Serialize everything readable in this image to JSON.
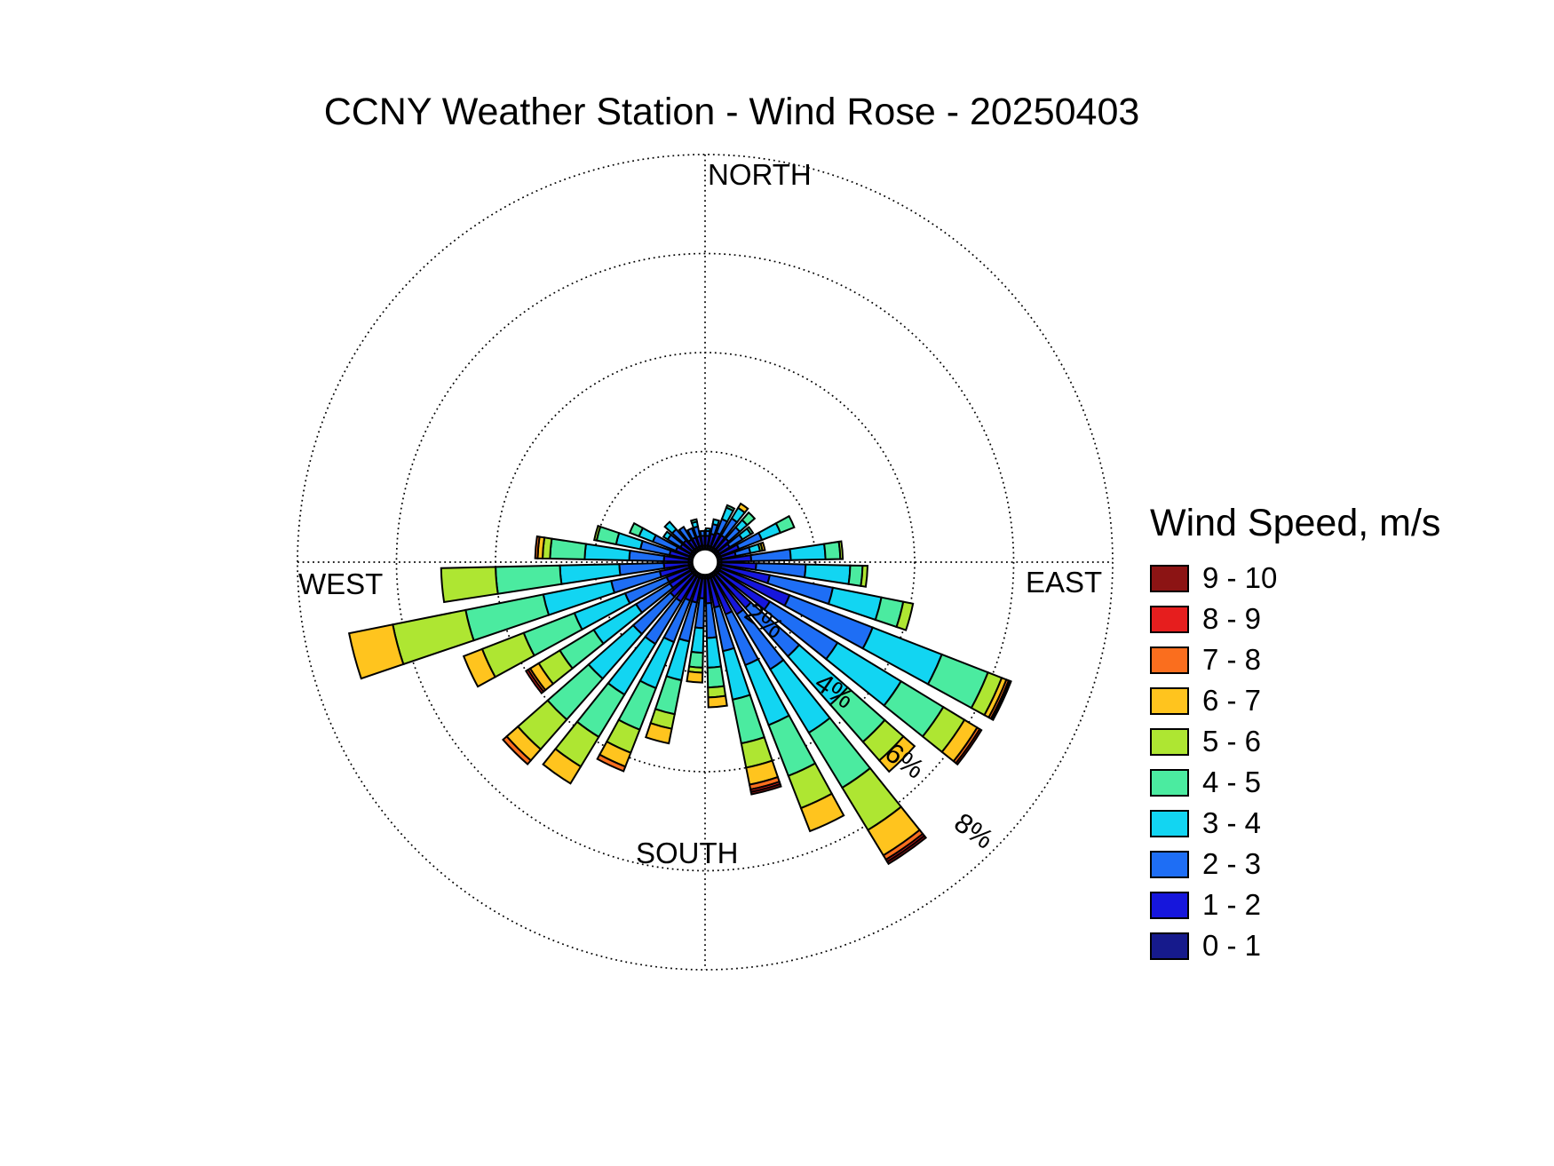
{
  "title": "CCNY Weather Station - Wind Rose - 20250403",
  "axis_labels": {
    "north": "NORTH",
    "east": "EAST",
    "south": "SOUTH",
    "west": "WEST"
  },
  "legend": {
    "title": "Wind Speed, m/s",
    "items": [
      {
        "label": "9 - 10",
        "color": "#8C1414"
      },
      {
        "label": "8 - 9",
        "color": "#E61E1E"
      },
      {
        "label": "7 - 8",
        "color": "#FA6E1E"
      },
      {
        "label": "6 - 7",
        "color": "#FFC41E"
      },
      {
        "label": "5 - 6",
        "color": "#AEE632"
      },
      {
        "label": "4 - 5",
        "color": "#4BEBA0"
      },
      {
        "label": "3 - 4",
        "color": "#12D5F2"
      },
      {
        "label": "2 - 3",
        "color": "#1E6EF5"
      },
      {
        "label": "1 - 2",
        "color": "#1616DC"
      },
      {
        "label": "0 - 1",
        "color": "#161A8C"
      }
    ]
  },
  "chart_data": {
    "type": "bar",
    "subtype": "wind-rose-stacked-polar",
    "title": "CCNY Weather Station - Wind Rose - 20250403",
    "units": "percent of time",
    "rings_pct": [
      2,
      4,
      6,
      8
    ],
    "ring_labels": [
      "2%",
      "4%",
      "6%",
      "8%"
    ],
    "ring_label_azimuth_deg": 135,
    "petal_width_deg": 7.4,
    "grid_style": "dotted",
    "legend_position": "right",
    "directions_deg": [
      5,
      15,
      25,
      35,
      45,
      55,
      65,
      75,
      85,
      95,
      105,
      115,
      125,
      135,
      145,
      155,
      165,
      175,
      185,
      195,
      205,
      215,
      225,
      235,
      245,
      255,
      265,
      275,
      285,
      295,
      305,
      315,
      325,
      335,
      345,
      355
    ],
    "series": [
      {
        "name": "0 - 1",
        "color": "#161A8C",
        "values": [
          0.1,
          0.1,
          0.1,
          0.1,
          0.1,
          0.1,
          0.1,
          0.1,
          0.1,
          0.1,
          0.1,
          0.1,
          0.1,
          0.1,
          0.1,
          0.1,
          0.1,
          0.1,
          0.1,
          0.1,
          0.1,
          0.1,
          0.1,
          0.1,
          0.1,
          0.1,
          0.1,
          0.1,
          0.1,
          0.1,
          0.1,
          0.1,
          0.1,
          0.1,
          0.1,
          0.1
        ]
      },
      {
        "name": "1 - 2",
        "color": "#1616DC",
        "values": [
          0.2,
          0.25,
          0.3,
          0.3,
          0.3,
          0.25,
          0.4,
          0.3,
          0.6,
          0.7,
          1.0,
          1.5,
          1.2,
          0.9,
          0.9,
          0.8,
          0.6,
          0.5,
          0.4,
          0.5,
          0.5,
          0.6,
          0.6,
          0.5,
          0.5,
          0.6,
          0.5,
          0.5,
          0.4,
          0.3,
          0.25,
          0.25,
          0.2,
          0.2,
          0.2,
          0.2
        ]
      },
      {
        "name": "2 - 3",
        "color": "#1E6EF5",
        "values": [
          0.1,
          0.2,
          0.3,
          0.4,
          0.3,
          0.3,
          0.5,
          0.3,
          0.8,
          1.0,
          1.3,
          1.8,
          1.6,
          1.3,
          1.3,
          1.1,
          0.9,
          0.7,
          0.6,
          0.8,
          0.9,
          1.0,
          1.0,
          0.8,
          0.9,
          1.0,
          0.9,
          0.7,
          0.6,
          0.5,
          0.3,
          0.3,
          0.3,
          0.2,
          0.2,
          0.1
        ]
      },
      {
        "name": "3 - 4",
        "color": "#12D5F2",
        "values": [
          0.05,
          0.1,
          0.25,
          0.25,
          0.2,
          0.2,
          0.4,
          0.2,
          0.7,
          0.9,
          1.0,
          1.5,
          1.5,
          1.3,
          1.5,
          1.3,
          1.0,
          0.6,
          0.5,
          0.8,
          1.0,
          1.2,
          1.2,
          1.0,
          1.1,
          1.4,
          1.2,
          0.9,
          0.5,
          0.3,
          0.1,
          0.2,
          0,
          0,
          0.1,
          0
        ]
      },
      {
        "name": "4 - 5",
        "color": "#4BEBA0",
        "values": [
          0,
          0,
          0.05,
          0,
          0.2,
          0.05,
          0.3,
          0,
          0.3,
          0.25,
          0.45,
          1.0,
          1.0,
          1.0,
          1.3,
          1.1,
          0.9,
          0.4,
          0.3,
          0.7,
          0.9,
          1.0,
          1.1,
          0.8,
          1.1,
          1.6,
          1.3,
          0.7,
          0.4,
          0.2,
          0,
          0,
          0,
          0,
          0.05,
          0
        ]
      },
      {
        "name": "5 - 6",
        "color": "#AEE632",
        "values": [
          0,
          0,
          0,
          0,
          0,
          0,
          0,
          0.05,
          0.05,
          0.1,
          0.2,
          0.3,
          0.5,
          0.5,
          1.0,
          0.7,
          0.5,
          0.2,
          0.1,
          0.3,
          0.5,
          0.7,
          0.8,
          0.5,
          0.9,
          1.5,
          1.1,
          0.15,
          0.05,
          0,
          0,
          0,
          0,
          0,
          0,
          0
        ]
      },
      {
        "name": "6 - 7",
        "color": "#FFC41E",
        "values": [
          0,
          0,
          0,
          0.1,
          0,
          0,
          0,
          0.05,
          0,
          0,
          0,
          0.1,
          0.3,
          0.3,
          0.6,
          0.5,
          0.35,
          0.2,
          0.2,
          0.3,
          0.3,
          0.4,
          0.3,
          0.2,
          0.4,
          0.9,
          0,
          0.1,
          0,
          0,
          0,
          0,
          0,
          0,
          0,
          0
        ]
      },
      {
        "name": "7 - 8",
        "color": "#FA6E1E",
        "values": [
          0,
          0,
          0,
          0,
          0,
          0,
          0,
          0,
          0,
          0,
          0,
          0.05,
          0.06,
          0,
          0.1,
          0,
          0.1,
          0,
          0,
          0,
          0.1,
          0,
          0.1,
          0.05,
          0,
          0,
          0,
          0.05,
          0,
          0,
          0,
          0,
          0,
          0,
          0,
          0
        ]
      },
      {
        "name": "8 - 9",
        "color": "#E61E1E",
        "values": [
          0,
          0,
          0,
          0,
          0,
          0,
          0,
          0,
          0,
          0,
          0,
          0.03,
          0.04,
          0,
          0.05,
          0,
          0.05,
          0,
          0,
          0,
          0,
          0,
          0,
          0.05,
          0,
          0,
          0,
          0,
          0,
          0,
          0,
          0,
          0,
          0,
          0,
          0
        ]
      },
      {
        "name": "9 - 10",
        "color": "#8C1414",
        "values": [
          0,
          0,
          0,
          0,
          0,
          0,
          0,
          0,
          0,
          0,
          0,
          0.02,
          0,
          0,
          0.05,
          0,
          0.05,
          0,
          0,
          0,
          0,
          0,
          0,
          0,
          0,
          0,
          0,
          0,
          0,
          0,
          0,
          0,
          0,
          0,
          0,
          0
        ]
      }
    ]
  }
}
